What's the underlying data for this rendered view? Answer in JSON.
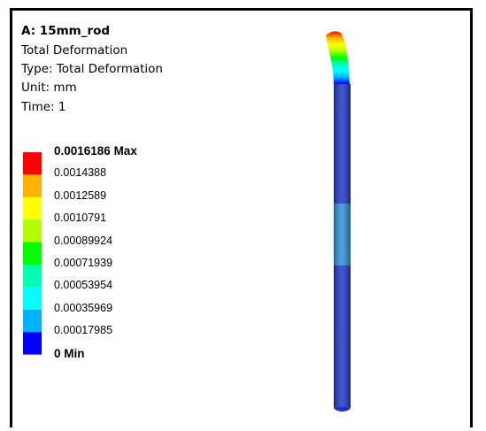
{
  "header": {
    "title": "A: 15mm_rod",
    "lines": [
      "Total Deformation",
      "Type: Total Deformation",
      "Unit: mm",
      "Time: 1"
    ]
  },
  "legend": {
    "labels": [
      "0.0016186 Max",
      "0.0014388",
      "0.0012589",
      "0.0010791",
      "0.00089924",
      "0.00071939",
      "0.00053954",
      "0.00035969",
      "0.00017985",
      "0 Min"
    ]
  }
}
